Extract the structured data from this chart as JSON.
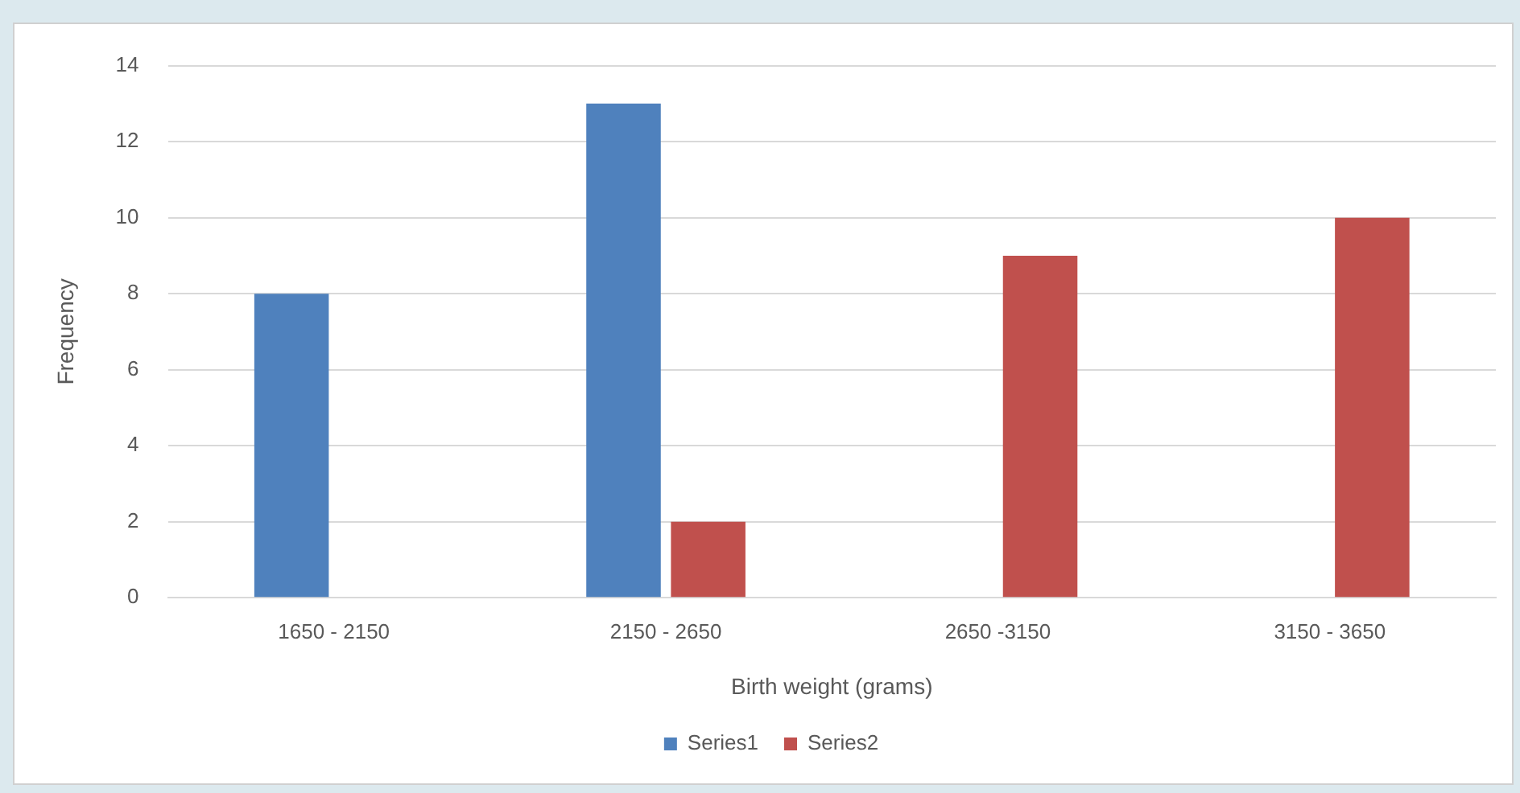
{
  "chart_data": {
    "type": "bar",
    "xlabel": "Birth weight (grams)",
    "ylabel": "Frequency",
    "categories": [
      "1650 - 2150",
      "2150 - 2650",
      "2650 -3150",
      "3150 - 3650"
    ],
    "series": [
      {
        "name": "Series1",
        "color": "#4f81bd",
        "values": [
          8,
          13,
          0,
          0
        ]
      },
      {
        "name": "Series2",
        "color": "#c0504d",
        "values": [
          0,
          2,
          9,
          10
        ]
      }
    ],
    "ylim": [
      0,
      14
    ],
    "yticks": [
      0,
      2,
      4,
      6,
      8,
      10,
      12,
      14
    ],
    "grid": "y",
    "legend": "bottom"
  }
}
